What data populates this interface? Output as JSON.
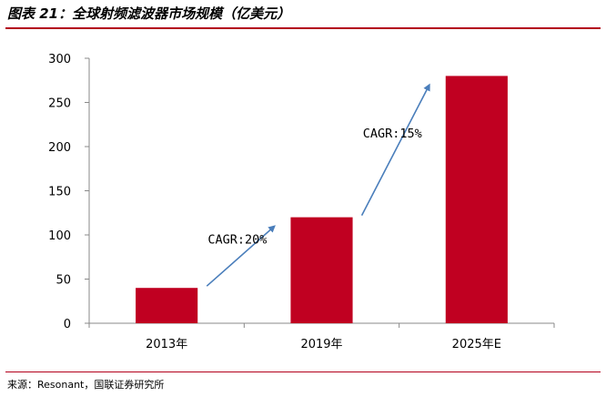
{
  "figure": {
    "title": "图表 21：全球射频滤波器市场规模（亿美元）",
    "source": "来源：Resonant，国联证券研究所"
  },
  "colors": {
    "bar": "#c00021",
    "arrow": "#4a7ebb",
    "rule": "#b3001b"
  },
  "chart_data": {
    "type": "bar",
    "title": "",
    "xlabel": "",
    "ylabel": "",
    "categories": [
      "2013年",
      "2019年",
      "2025年E"
    ],
    "values": [
      40,
      120,
      280
    ],
    "ylim": [
      0,
      300
    ],
    "yticks": [
      0,
      50,
      100,
      150,
      200,
      250,
      300
    ],
    "grid": false,
    "annotations": [
      {
        "text": "CAGR:20%",
        "from": "2013年",
        "to": "2019年"
      },
      {
        "text": "CAGR:15%",
        "from": "2019年",
        "to": "2025年E"
      }
    ]
  }
}
